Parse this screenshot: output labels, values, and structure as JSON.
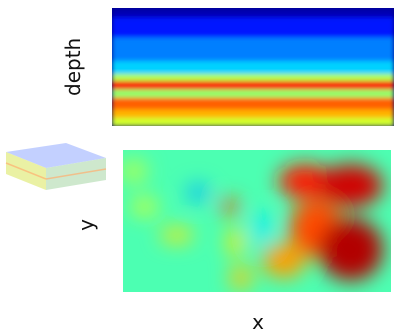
{
  "colormap": [
    "#00007f",
    "#0000ff",
    "#007fff",
    "#00ffff",
    "#7fff7f",
    "#ffff00",
    "#ff7f00",
    "#ff0000",
    "#7f0000"
  ],
  "chart_data": [
    {
      "type": "heatmap",
      "view": "depth-section",
      "xlabel": "",
      "ylabel": "depth",
      "value_range": [
        0,
        1
      ],
      "layers": [
        {
          "depth_range": [
            0.0,
            0.08
          ],
          "value": 0.05
        },
        {
          "depth_range": [
            0.08,
            0.25
          ],
          "value": 0.15
        },
        {
          "depth_range": [
            0.25,
            0.45
          ],
          "value": 0.25
        },
        {
          "depth_range": [
            0.45,
            0.56
          ],
          "value": 0.33
        },
        {
          "depth_range": [
            0.56,
            0.62
          ],
          "value": 0.55
        },
        {
          "depth_range": [
            0.62,
            0.69
          ],
          "value": 0.88
        },
        {
          "depth_range": [
            0.69,
            0.76
          ],
          "value": 0.52
        },
        {
          "depth_range": [
            0.76,
            0.86
          ],
          "value": 0.78
        },
        {
          "depth_range": [
            0.86,
            0.93
          ],
          "value": 0.7
        },
        {
          "depth_range": [
            0.93,
            1.0
          ],
          "value": 0.58
        }
      ]
    },
    {
      "type": "heatmap",
      "view": "map",
      "xlabel": "x",
      "ylabel": "y",
      "value_range": [
        0,
        1
      ],
      "background_value": 0.45,
      "anomalies": [
        {
          "cx": 0.68,
          "cy": 0.22,
          "rx": 0.1,
          "ry": 0.12,
          "value": 0.85
        },
        {
          "cx": 0.85,
          "cy": 0.25,
          "rx": 0.12,
          "ry": 0.15,
          "value": 0.92
        },
        {
          "cx": 0.72,
          "cy": 0.55,
          "rx": 0.1,
          "ry": 0.2,
          "value": 0.8
        },
        {
          "cx": 0.85,
          "cy": 0.7,
          "rx": 0.12,
          "ry": 0.22,
          "value": 0.95
        },
        {
          "cx": 0.6,
          "cy": 0.78,
          "rx": 0.08,
          "ry": 0.12,
          "value": 0.72
        },
        {
          "cx": 0.4,
          "cy": 0.4,
          "rx": 0.03,
          "ry": 0.06,
          "value": 0.8
        },
        {
          "cx": 0.42,
          "cy": 0.65,
          "rx": 0.03,
          "ry": 0.1,
          "value": 0.65
        },
        {
          "cx": 0.44,
          "cy": 0.9,
          "rx": 0.04,
          "ry": 0.08,
          "value": 0.68
        },
        {
          "cx": 0.2,
          "cy": 0.6,
          "rx": 0.06,
          "ry": 0.05,
          "value": 0.65
        },
        {
          "cx": 0.08,
          "cy": 0.4,
          "rx": 0.05,
          "ry": 0.06,
          "value": 0.58
        },
        {
          "cx": 0.04,
          "cy": 0.15,
          "rx": 0.05,
          "ry": 0.08,
          "value": 0.55
        },
        {
          "cx": 0.28,
          "cy": 0.3,
          "rx": 0.04,
          "ry": 0.06,
          "value": 0.3
        },
        {
          "cx": 0.52,
          "cy": 0.55,
          "rx": 0.03,
          "ry": 0.12,
          "value": 0.35
        }
      ]
    }
  ]
}
